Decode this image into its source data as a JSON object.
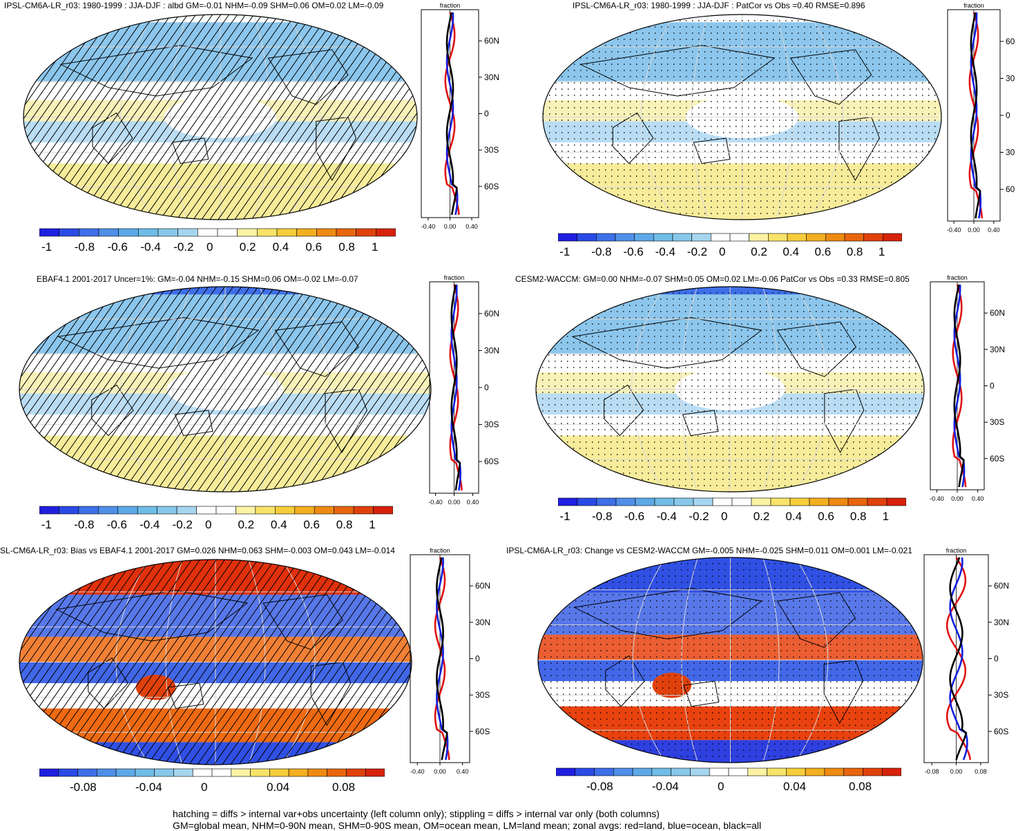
{
  "panels": [
    {
      "id": "p1",
      "title": "IPSL-CM6A-LR_r03: 1980-1999 : JJA-DJF : albd GM=-0.01 NHM=-0.09 SHM=0.06 OM=0.02 LM=-0.09",
      "overlay": "hatch",
      "scale": "a",
      "zonal": {
        "label": "fraction",
        "yticks": [
          "60N",
          "30N",
          "0",
          "30S",
          "60S"
        ],
        "xticks": [
          "-0.40",
          "0.00",
          "0.40"
        ]
      },
      "colorbar_labels": [
        "-1",
        "-0.8",
        "-0.6",
        "-0.4",
        "-0.2",
        "0",
        "0.2",
        "0.4",
        "0.6",
        "0.8",
        "1"
      ]
    },
    {
      "id": "p2",
      "title": "IPSL-CM6A-LR_r03: 1980-1999 : JJA-DJF : PatCor vs Obs =0.40 RMSE=0.896",
      "overlay": "stipple",
      "scale": "a",
      "zonal": {
        "label": "fraction",
        "yticks": [
          "60",
          "30",
          "0",
          "30",
          "60"
        ],
        "xticks": [
          "-0.40",
          "0.00",
          "0.40"
        ]
      },
      "colorbar_labels": [
        "-1",
        "-0.8",
        "-0.6",
        "-0.4",
        "-0.2",
        "0",
        "0.2",
        "0.4",
        "0.6",
        "0.8",
        "1"
      ]
    },
    {
      "id": "p3",
      "title": "EBAF4.1 2001-2017 Uncer=1%: GM=-0.04 NHM=-0.15 SHM=0.06 OM=-0.02 LM=-0.07",
      "overlay": "hatch",
      "scale": "b",
      "zonal": {
        "label": "fraction",
        "yticks": [
          "60N",
          "30N",
          "0",
          "30S",
          "60S"
        ],
        "xticks": [
          "-0.40",
          "0.00",
          "0.40"
        ]
      },
      "colorbar_labels": [
        "-1",
        "-0.8",
        "-0.6",
        "-0.4",
        "-0.2",
        "0",
        "0.2",
        "0.4",
        "0.6",
        "0.8",
        "1"
      ]
    },
    {
      "id": "p4",
      "title": "CESM2-WACCM: GM=0.00 NHM=-0.07 SHM=0.05 OM=0.02 LM=-0.06 PatCor vs Obs =0.33 RMSE=0.805",
      "overlay": "stipple",
      "scale": "b",
      "zonal": {
        "label": "fraction",
        "yticks": [
          "60N",
          "30N",
          "0",
          "30S",
          "60S"
        ],
        "xticks": [
          "-0.40",
          "0.00",
          "0.40"
        ]
      },
      "colorbar_labels": [
        "-1",
        "-0.8",
        "-0.6",
        "-0.4",
        "-0.2",
        "0",
        "0.2",
        "0.4",
        "0.6",
        "0.8",
        "1"
      ]
    },
    {
      "id": "p5",
      "title": "SL-CM6A-LR_r03: Bias vs EBAF4.1 2001-2017 GM=0.026 NHM=0.063 SHM=-0.003 OM=0.043 LM=-0.014",
      "overlay": "hatch",
      "scale": "c",
      "zonal": {
        "label": "fraction",
        "yticks": [
          "60N",
          "30N",
          "0",
          "30S",
          "60S"
        ],
        "xticks": [
          "-0.40",
          "0.00",
          "0.40"
        ]
      },
      "colorbar_labels": [
        "-0.08",
        "-0.04",
        "0",
        "0.04",
        "0.08"
      ]
    },
    {
      "id": "p6",
      "title": "IPSL-CM6A-LR_r03: Change vs CESM2-WACCM GM=-0.005 NHM=-0.025 SHM=0.011 OM=0.001 LM=-0.021",
      "overlay": "stipple",
      "scale": "d",
      "zonal": {
        "label": "fraction",
        "yticks": [
          "60N",
          "30N",
          "0",
          "30S",
          "60S"
        ],
        "xticks": [
          "-0.08",
          "0.00",
          "0.08"
        ]
      },
      "colorbar_labels": [
        "-0.08",
        "-0.04",
        "0",
        "0.04",
        "0.08"
      ]
    }
  ],
  "colorbar_colors": [
    "#1f1fe0",
    "#2a4ae6",
    "#3d6fe8",
    "#4f8fe8",
    "#5da9e8",
    "#6fbde6",
    "#87c8ea",
    "#a6d6ef",
    "#ffffff",
    "#ffffff",
    "#fbf2a3",
    "#f8e36a",
    "#f6cd3a",
    "#f2af20",
    "#ee8a12",
    "#e8650e",
    "#e0410b",
    "#d6220a"
  ],
  "footnote": {
    "line1": "hatching = diffs > internal var+obs uncertainty (left column only); stippling = diffs > internal var only (both columns)",
    "line2": "GM=global mean, NHM=0-90N mean, SHM=0-90S mean, OM=ocean mean, LM=land mean; zonal avgs: red=land, blue=ocean, black=all"
  },
  "legend_colors": {
    "land": "#e01010",
    "ocean": "#1020e0",
    "all": "#000000"
  }
}
